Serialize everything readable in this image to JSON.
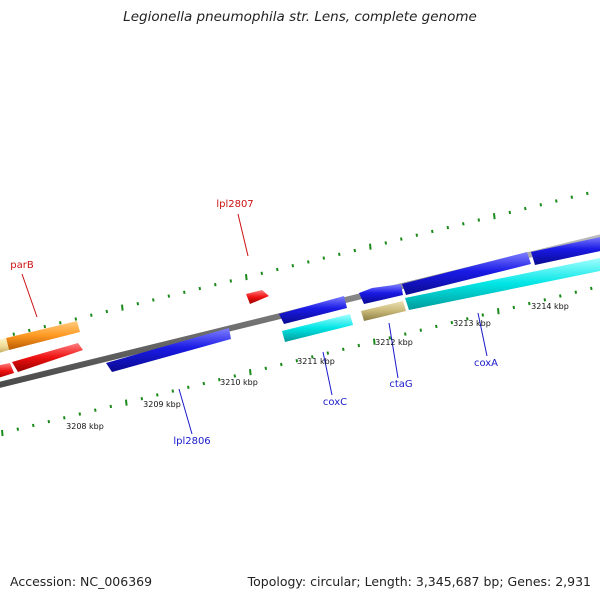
{
  "title": "Legionella pneumophila str. Lens, complete genome",
  "footer": {
    "accession": "Accession: NC_006369",
    "stats": "Topology: circular; Length: 3,345,687 bp; Genes: 2,931"
  },
  "colors": {
    "backbone": "#808080",
    "tick": "#1a8a1a",
    "cds_forward": "#1a1ae6",
    "cds_forward_light": "#7070ff",
    "cds_reverse": "#00e5e5",
    "red_gene": "#ee1111",
    "orange_gene": "#ff9922",
    "khaki_gene": "#c8b878",
    "label_red": "#cc1111",
    "label_blue": "#1a1acc"
  },
  "scale_labels": [
    "3208 kbp",
    "3209 kbp",
    "3210 kbp",
    "3211 kbp",
    "3212 kbp",
    "3213 kbp",
    "3214 kbp"
  ],
  "gene_labels": [
    {
      "name": "parB",
      "color": "red"
    },
    {
      "name": "lpl2807",
      "color": "red"
    },
    {
      "name": "lpl2806",
      "color": "blue"
    },
    {
      "name": "coxC",
      "color": "blue"
    },
    {
      "name": "ctaG",
      "color": "blue"
    },
    {
      "name": "coxA",
      "color": "blue"
    }
  ]
}
